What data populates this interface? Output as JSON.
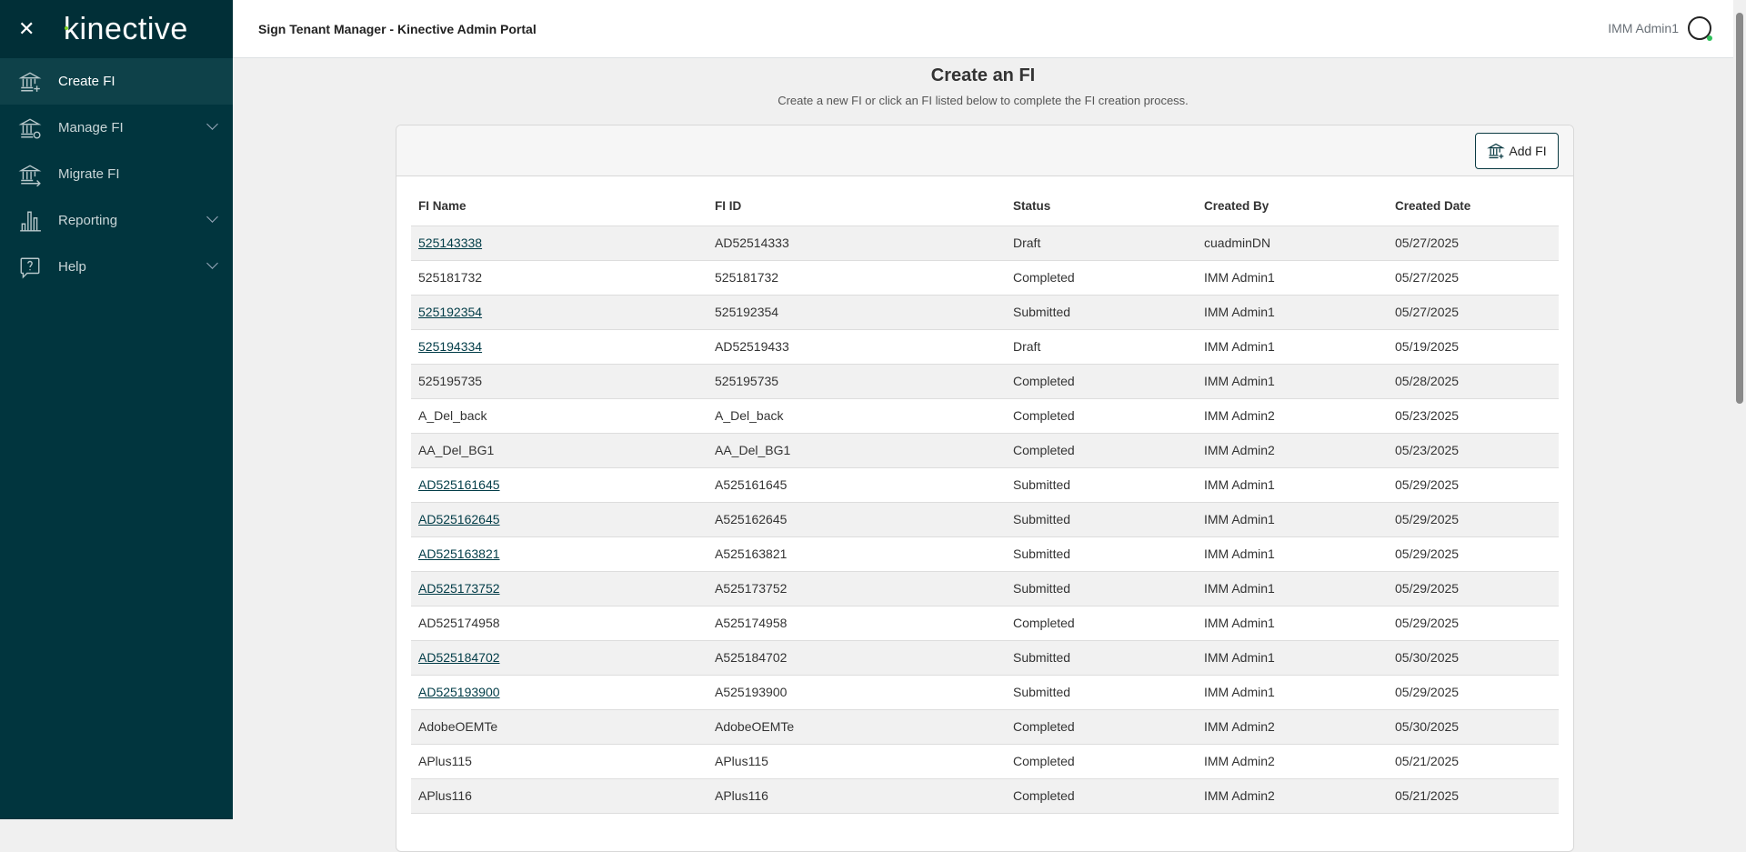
{
  "sidebar": {
    "brand": "kinective",
    "items": [
      {
        "label": "Create FI",
        "icon": "bank-plus-icon",
        "active": true
      },
      {
        "label": "Manage FI",
        "icon": "bank-gear-icon",
        "expandable": true
      },
      {
        "label": "Migrate FI",
        "icon": "bank-arrow-icon"
      },
      {
        "label": "Reporting",
        "icon": "bar-chart-icon",
        "expandable": true
      },
      {
        "label": "Help",
        "icon": "help-bubble-icon",
        "expandable": true
      }
    ]
  },
  "header": {
    "title": "Sign Tenant Manager - Kinective Admin Portal",
    "user": "IMM Admin1"
  },
  "page": {
    "title": "Create an FI",
    "subtitle": "Create a new FI or click an FI listed below to complete the FI creation process.",
    "add_label": "Add FI"
  },
  "table": {
    "columns": [
      "FI Name",
      "FI ID",
      "Status",
      "Created By",
      "Created Date"
    ],
    "rows": [
      {
        "name": "525143338",
        "id": "AD52514333",
        "status": "Draft",
        "by": "cuadminDN",
        "date": "05/27/2025",
        "link": true
      },
      {
        "name": "525181732",
        "id": "525181732",
        "status": "Completed",
        "by": "IMM Admin1",
        "date": "05/27/2025",
        "link": false
      },
      {
        "name": "525192354",
        "id": "525192354",
        "status": "Submitted",
        "by": "IMM Admin1",
        "date": "05/27/2025",
        "link": true
      },
      {
        "name": "525194334",
        "id": "AD52519433",
        "status": "Draft",
        "by": "IMM Admin1",
        "date": "05/19/2025",
        "link": true
      },
      {
        "name": "525195735",
        "id": "525195735",
        "status": "Completed",
        "by": "IMM Admin1",
        "date": "05/28/2025",
        "link": false
      },
      {
        "name": "A_Del_back",
        "id": "A_Del_back",
        "status": "Completed",
        "by": "IMM Admin2",
        "date": "05/23/2025",
        "link": false
      },
      {
        "name": "AA_Del_BG1",
        "id": "AA_Del_BG1",
        "status": "Completed",
        "by": "IMM Admin2",
        "date": "05/23/2025",
        "link": false
      },
      {
        "name": "AD525161645",
        "id": "A525161645",
        "status": "Submitted",
        "by": "IMM Admin1",
        "date": "05/29/2025",
        "link": true
      },
      {
        "name": "AD525162645",
        "id": "A525162645",
        "status": "Submitted",
        "by": "IMM Admin1",
        "date": "05/29/2025",
        "link": true
      },
      {
        "name": "AD525163821",
        "id": "A525163821",
        "status": "Submitted",
        "by": "IMM Admin1",
        "date": "05/29/2025",
        "link": true
      },
      {
        "name": "AD525173752",
        "id": "A525173752",
        "status": "Submitted",
        "by": "IMM Admin1",
        "date": "05/29/2025",
        "link": true
      },
      {
        "name": "AD525174958",
        "id": "A525174958",
        "status": "Completed",
        "by": "IMM Admin1",
        "date": "05/29/2025",
        "link": false
      },
      {
        "name": "AD525184702",
        "id": "A525184702",
        "status": "Submitted",
        "by": "IMM Admin1",
        "date": "05/30/2025",
        "link": true
      },
      {
        "name": "AD525193900",
        "id": "A525193900",
        "status": "Submitted",
        "by": "IMM Admin1",
        "date": "05/29/2025",
        "link": true
      },
      {
        "name": "AdobeOEMTe",
        "id": "AdobeOEMTe",
        "status": "Completed",
        "by": "IMM Admin2",
        "date": "05/30/2025",
        "link": false
      },
      {
        "name": "APlus115",
        "id": "APlus115",
        "status": "Completed",
        "by": "IMM Admin2",
        "date": "05/21/2025",
        "link": false
      },
      {
        "name": "APlus116",
        "id": "APlus116",
        "status": "Completed",
        "by": "IMM Admin2",
        "date": "05/21/2025",
        "link": false
      }
    ]
  }
}
